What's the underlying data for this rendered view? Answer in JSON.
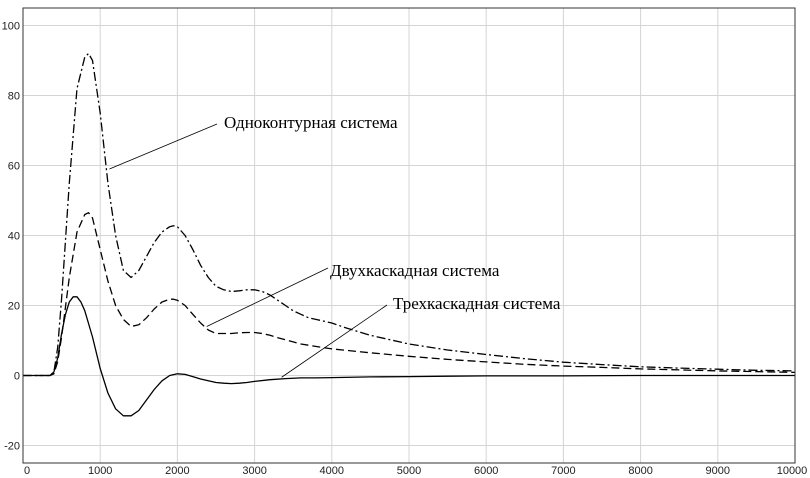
{
  "chart_data": {
    "type": "line",
    "title": "",
    "xlabel": "",
    "ylabel": "",
    "xlim": [
      0,
      10000
    ],
    "ylim": [
      -25,
      105
    ],
    "xticks": [
      0,
      1000,
      2000,
      3000,
      4000,
      5000,
      6000,
      7000,
      8000,
      9000,
      10000
    ],
    "yticks": [
      -20,
      0,
      20,
      40,
      60,
      80,
      100
    ],
    "xtick_labels": [
      "0",
      "1000",
      "2000",
      "3000",
      "4000",
      "5000",
      "6000",
      "7000",
      "8000",
      "9000",
      "10000"
    ],
    "ytick_labels": [
      "-20",
      "0",
      "20",
      "40",
      "60",
      "80",
      "100"
    ],
    "grid": true,
    "legend": "none",
    "series": [
      {
        "name": "Одноконтурная система",
        "style": "dash-dot",
        "x": [
          0,
          300,
          350,
          400,
          450,
          500,
          600,
          700,
          800,
          850,
          900,
          1000,
          1100,
          1200,
          1300,
          1400,
          1500,
          1600,
          1700,
          1800,
          1900,
          1950,
          2000,
          2100,
          2200,
          2300,
          2400,
          2500,
          2600,
          2700,
          2800,
          2900,
          3000,
          3100,
          3200,
          3300,
          3400,
          3500,
          3600,
          3700,
          3800,
          4000,
          4200,
          4500,
          5000,
          5500,
          6000,
          6500,
          7000,
          7500,
          8000,
          8500,
          9000,
          9500,
          10000
        ],
        "y": [
          0,
          0,
          0,
          1,
          8,
          22,
          55,
          82,
          91,
          92,
          90,
          75,
          55,
          40,
          30,
          28,
          30,
          34,
          38,
          41,
          42.5,
          42.8,
          42.5,
          40,
          36,
          31.5,
          28,
          25.5,
          24.5,
          24,
          24.2,
          24.5,
          24.5,
          24,
          23,
          21.5,
          20,
          18.5,
          17.5,
          16.5,
          16,
          15,
          13.5,
          11.5,
          9,
          7.3,
          6,
          4.8,
          3.8,
          3.1,
          2.5,
          2.1,
          1.8,
          1.5,
          1.3
        ]
      },
      {
        "name": "Двухкаскадная система",
        "style": "dashed",
        "x": [
          0,
          300,
          350,
          400,
          450,
          500,
          600,
          700,
          800,
          850,
          900,
          1000,
          1100,
          1200,
          1300,
          1400,
          1500,
          1600,
          1700,
          1800,
          1900,
          1950,
          2000,
          2100,
          2200,
          2300,
          2400,
          2500,
          2600,
          2700,
          2800,
          2900,
          3000,
          3100,
          3200,
          3300,
          3400,
          3500,
          3600,
          3800,
          4000,
          4500,
          5000,
          5500,
          6000,
          6500,
          7000,
          7500,
          8000,
          8500,
          9000,
          9500,
          10000
        ],
        "y": [
          0,
          0,
          0,
          0.5,
          4,
          11,
          28,
          41,
          46,
          46.5,
          45,
          36,
          27,
          20,
          16,
          14,
          14.5,
          16.5,
          19,
          21,
          21.8,
          21.8,
          21.5,
          20,
          17.5,
          15,
          13,
          12,
          12,
          12,
          12.2,
          12.3,
          12.3,
          12,
          11.5,
          10.8,
          10.2,
          9.6,
          9,
          8.3,
          7.6,
          6.5,
          5.5,
          4.6,
          3.9,
          3.2,
          2.7,
          2.3,
          1.9,
          1.6,
          1.3,
          1.1,
          0.9
        ]
      },
      {
        "name": "Трехкаскадная система",
        "style": "solid",
        "x": [
          0,
          300,
          350,
          400,
          450,
          500,
          550,
          600,
          650,
          700,
          750,
          800,
          900,
          1000,
          1100,
          1200,
          1300,
          1400,
          1500,
          1600,
          1700,
          1800,
          1900,
          2000,
          2100,
          2200,
          2300,
          2400,
          2500,
          2600,
          2700,
          2800,
          2900,
          3000,
          3200,
          3400,
          3600,
          3800,
          4000,
          4500,
          5000,
          5500,
          6000,
          7000,
          8000,
          9000,
          10000
        ],
        "y": [
          0,
          0,
          0,
          1,
          5,
          12,
          17.5,
          21,
          22.5,
          22.5,
          21,
          18.5,
          11,
          2,
          -5,
          -9.5,
          -11.5,
          -11.5,
          -10,
          -7,
          -4,
          -1.5,
          0,
          0.5,
          0.3,
          -0.3,
          -1,
          -1.5,
          -2,
          -2.2,
          -2.3,
          -2.2,
          -2,
          -1.7,
          -1.2,
          -0.9,
          -0.7,
          -0.7,
          -0.6,
          -0.4,
          -0.3,
          -0.2,
          -0.1,
          -0.1,
          0,
          0,
          0
        ]
      }
    ],
    "annotations": [
      {
        "text": "Одноконтурная система",
        "series": 0,
        "point": [
          1120,
          59
        ]
      },
      {
        "text": "Двухкаскадная система",
        "series": 1,
        "point": [
          2380,
          14
        ]
      },
      {
        "text": "Трехкаскадная система",
        "series": 2,
        "point": [
          3350,
          -0.5
        ]
      }
    ]
  }
}
